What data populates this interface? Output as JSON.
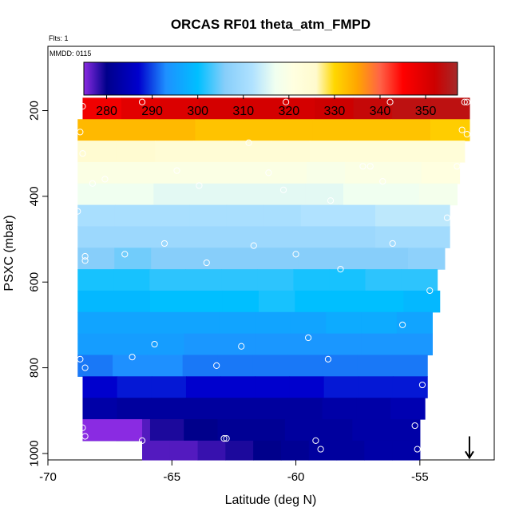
{
  "chart_data": {
    "type": "heatmap",
    "title": "ORCAS RF01 theta_atm_FMPD",
    "notes": {
      "flights": "Flts: 1",
      "date": "MMDD: 0115"
    },
    "xlabel": "Latitude (deg N)",
    "ylabel": "PSXC (mbar)",
    "xlim": [
      -70,
      -52
    ],
    "ylim": [
      1015,
      50
    ],
    "y_inverted": true,
    "x_ticks": [
      -70,
      -65,
      -60,
      -55
    ],
    "x_tick_labels": [
      "-70",
      "-65",
      "-60",
      "-55"
    ],
    "y_ticks": [
      200,
      400,
      600,
      800,
      1000
    ],
    "y_tick_labels": [
      "200",
      "400",
      "600",
      "800",
      "1000"
    ],
    "colorbar": {
      "min": 275,
      "max": 357,
      "ticks": [
        280,
        290,
        300,
        310,
        320,
        330,
        340,
        350
      ],
      "tick_labels": [
        "280",
        "290",
        "300",
        "310",
        "320",
        "330",
        "340",
        "350"
      ],
      "stops": [
        {
          "v": 275,
          "c": "#8a2be2"
        },
        {
          "v": 280,
          "c": "#00008b"
        },
        {
          "v": 287,
          "c": "#0000cd"
        },
        {
          "v": 293,
          "c": "#1e90ff"
        },
        {
          "v": 300,
          "c": "#00bfff"
        },
        {
          "v": 306,
          "c": "#87cefa"
        },
        {
          "v": 312,
          "c": "#b0e2ff"
        },
        {
          "v": 317,
          "c": "#f0fff0"
        },
        {
          "v": 321,
          "c": "#ffffe0"
        },
        {
          "v": 326,
          "c": "#fffacd"
        },
        {
          "v": 330,
          "c": "#ffd700"
        },
        {
          "v": 335,
          "c": "#ffa500"
        },
        {
          "v": 340,
          "c": "#ff6347"
        },
        {
          "v": 345,
          "c": "#ff0000"
        },
        {
          "v": 352,
          "c": "#cd0000"
        },
        {
          "v": 357,
          "c": "#a52a2a"
        }
      ]
    },
    "bands": [
      {
        "p_top": 170,
        "p_bot": 220,
        "lat_min": -68.6,
        "lat_max": -53.0,
        "values": [
          347,
          349,
          350,
          351,
          351,
          351,
          352,
          353,
          354,
          354
        ]
      },
      {
        "p_top": 220,
        "p_bot": 270,
        "lat_min": -68.8,
        "lat_max": -53.0,
        "values": [
          333,
          333,
          333,
          332,
          332,
          332,
          332,
          332,
          332,
          331
        ]
      },
      {
        "p_top": 270,
        "p_bot": 320,
        "lat_min": -68.8,
        "lat_max": -53.2,
        "values": [
          325,
          325,
          324,
          324,
          324,
          324,
          323,
          323,
          323,
          323
        ]
      },
      {
        "p_top": 320,
        "p_bot": 370,
        "lat_min": -68.8,
        "lat_max": -53.4,
        "values": [
          320,
          320,
          320,
          320,
          320,
          320,
          319,
          320,
          320,
          321
        ]
      },
      {
        "p_top": 370,
        "p_bot": 420,
        "lat_min": -68.8,
        "lat_max": -53.5,
        "values": [
          317,
          317,
          316,
          316,
          316,
          316,
          316,
          317,
          317,
          318
        ]
      },
      {
        "p_top": 420,
        "p_bot": 470,
        "lat_min": -68.8,
        "lat_max": -53.8,
        "values": [
          311,
          311,
          311,
          311,
          311,
          311,
          312,
          312,
          313,
          313
        ]
      },
      {
        "p_top": 470,
        "p_bot": 520,
        "lat_min": -68.8,
        "lat_max": -53.8,
        "values": [
          309,
          309,
          309,
          309,
          309,
          309,
          309,
          309,
          310,
          310
        ]
      },
      {
        "p_top": 520,
        "p_bot": 570,
        "lat_min": -68.8,
        "lat_max": -54.0,
        "values": [
          306,
          305,
          306,
          306,
          306,
          306,
          306,
          306,
          306,
          307
        ]
      },
      {
        "p_top": 570,
        "p_bot": 620,
        "lat_min": -68.8,
        "lat_max": -54.3,
        "values": [
          301,
          301,
          302,
          302,
          302,
          302,
          301,
          301,
          302,
          302
        ]
      },
      {
        "p_top": 620,
        "p_bot": 670,
        "lat_min": -68.8,
        "lat_max": -54.2,
        "values": [
          299,
          299,
          300,
          300,
          300,
          301,
          300,
          300,
          300,
          299
        ]
      },
      {
        "p_top": 670,
        "p_bot": 720,
        "lat_min": -68.8,
        "lat_max": -54.5,
        "values": [
          296,
          296,
          296,
          296,
          296,
          296,
          296,
          297,
          297,
          296
        ]
      },
      {
        "p_top": 720,
        "p_bot": 770,
        "lat_min": -68.8,
        "lat_max": -54.5,
        "values": [
          295,
          295,
          295,
          294,
          294,
          294,
          294,
          294,
          294,
          294
        ]
      },
      {
        "p_top": 770,
        "p_bot": 820,
        "lat_min": -68.8,
        "lat_max": -54.7,
        "values": [
          292,
          293,
          293,
          292,
          292,
          292,
          292,
          292,
          292,
          292
        ]
      },
      {
        "p_top": 820,
        "p_bot": 870,
        "lat_min": -68.6,
        "lat_max": -54.7,
        "values": [
          287,
          288,
          288,
          287,
          287,
          287,
          287,
          288,
          288,
          288
        ]
      },
      {
        "p_top": 870,
        "p_bot": 920,
        "lat_min": -68.6,
        "lat_max": -54.8,
        "values": [
          283,
          282,
          282,
          282,
          282,
          282,
          282,
          283,
          283,
          284
        ]
      },
      {
        "p_top": 920,
        "p_bot": 970,
        "lat_min": -68.6,
        "lat_max": -55.0,
        "values": [
          276,
          277,
          279,
          280,
          281,
          281,
          282,
          282,
          283,
          283
        ]
      },
      {
        "p_top": 970,
        "p_bot": 1015,
        "lat_min": -66.2,
        "lat_max": -55.0,
        "values": [
          277,
          277,
          278,
          279,
          280,
          281,
          282,
          282,
          283,
          283
        ]
      }
    ],
    "extra_blocks": [
      {
        "p_top": 920,
        "p_bot": 970,
        "lat_min": -68.6,
        "lat_max": -66.2,
        "value": 275
      }
    ],
    "points": [
      {
        "lat": -68.6,
        "p": 190
      },
      {
        "lat": -66.2,
        "p": 180
      },
      {
        "lat": -60.4,
        "p": 180
      },
      {
        "lat": -56.2,
        "p": 180
      },
      {
        "lat": -53.2,
        "p": 180
      },
      {
        "lat": -53.1,
        "p": 180
      },
      {
        "lat": -68.7,
        "p": 250
      },
      {
        "lat": -53.3,
        "p": 245
      },
      {
        "lat": -53.1,
        "p": 255
      },
      {
        "lat": -61.9,
        "p": 275
      },
      {
        "lat": -68.6,
        "p": 300
      },
      {
        "lat": -57.3,
        "p": 330
      },
      {
        "lat": -57.0,
        "p": 330
      },
      {
        "lat": -64.8,
        "p": 340
      },
      {
        "lat": -61.1,
        "p": 345
      },
      {
        "lat": -53.5,
        "p": 330
      },
      {
        "lat": -67.7,
        "p": 360
      },
      {
        "lat": -68.2,
        "p": 370
      },
      {
        "lat": -63.9,
        "p": 375
      },
      {
        "lat": -60.5,
        "p": 385
      },
      {
        "lat": -56.5,
        "p": 365
      },
      {
        "lat": -58.6,
        "p": 410
      },
      {
        "lat": -68.8,
        "p": 435
      },
      {
        "lat": -53.9,
        "p": 450
      },
      {
        "lat": -65.3,
        "p": 510
      },
      {
        "lat": -61.7,
        "p": 515
      },
      {
        "lat": -56.1,
        "p": 510
      },
      {
        "lat": -68.5,
        "p": 540
      },
      {
        "lat": -66.9,
        "p": 535
      },
      {
        "lat": -60.0,
        "p": 535
      },
      {
        "lat": -68.5,
        "p": 550
      },
      {
        "lat": -63.6,
        "p": 555
      },
      {
        "lat": -58.2,
        "p": 570
      },
      {
        "lat": -54.6,
        "p": 620
      },
      {
        "lat": -55.7,
        "p": 700
      },
      {
        "lat": -59.5,
        "p": 730
      },
      {
        "lat": -65.7,
        "p": 745
      },
      {
        "lat": -62.2,
        "p": 750
      },
      {
        "lat": -68.7,
        "p": 780
      },
      {
        "lat": -66.6,
        "p": 775
      },
      {
        "lat": -58.7,
        "p": 780
      },
      {
        "lat": -63.2,
        "p": 795
      },
      {
        "lat": -68.5,
        "p": 800
      },
      {
        "lat": -54.9,
        "p": 840
      },
      {
        "lat": -55.2,
        "p": 935
      },
      {
        "lat": -68.6,
        "p": 940
      },
      {
        "lat": -68.5,
        "p": 960
      },
      {
        "lat": -66.2,
        "p": 970
      },
      {
        "lat": -62.9,
        "p": 965
      },
      {
        "lat": -62.8,
        "p": 965
      },
      {
        "lat": -59.2,
        "p": 970
      },
      {
        "lat": -59.0,
        "p": 990
      },
      {
        "lat": -55.1,
        "p": 990
      }
    ],
    "arrow": {
      "lat": -53.0,
      "p_start": 960,
      "p_end": 1010
    }
  }
}
